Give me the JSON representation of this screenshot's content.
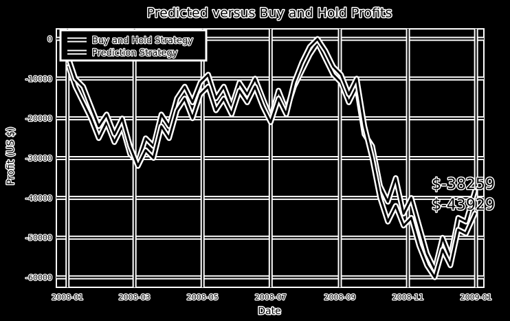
{
  "chart_data": {
    "type": "line",
    "title": "Predicted versus Buy and Hold Profits",
    "xlabel": "Date",
    "ylabel": "Profit (US $)",
    "xlim": [
      "2007-12-22",
      "2009-01-08"
    ],
    "ylim": [
      -62500,
      2500
    ],
    "x_ticks": [
      "2008-01-01",
      "2008-03-01",
      "2008-05-01",
      "2008-07-01",
      "2008-09-01",
      "2008-11-01",
      "2009-01-01"
    ],
    "x_tick_labels": [
      "2008-01",
      "2008-03",
      "2008-05",
      "2008-07",
      "2008-09",
      "2008-11",
      "2009-01"
    ],
    "y_ticks": [
      0,
      -10000,
      -20000,
      -30000,
      -40000,
      -50000,
      -60000
    ],
    "y_tick_labels": [
      "0",
      "-10000",
      "-20000",
      "-30000",
      "-40000",
      "-50000",
      "-60000"
    ],
    "grid": true,
    "legend": {
      "placement": "top-left",
      "entries": [
        "Buy and Hold Strategy",
        "Prediction Strategy"
      ]
    },
    "annotations": [
      "$-38259",
      "$-43929"
    ],
    "series": [
      {
        "name": "Buy and Hold Strategy",
        "x": [
          "2008-01-02",
          "2008-01-08",
          "2008-01-15",
          "2008-01-22",
          "2008-01-29",
          "2008-02-05",
          "2008-02-12",
          "2008-02-19",
          "2008-02-26",
          "2008-03-04",
          "2008-03-11",
          "2008-03-18",
          "2008-03-25",
          "2008-04-01",
          "2008-04-08",
          "2008-04-15",
          "2008-04-22",
          "2008-04-29",
          "2008-05-06",
          "2008-05-13",
          "2008-05-20",
          "2008-05-27",
          "2008-06-03",
          "2008-06-10",
          "2008-06-17",
          "2008-06-24",
          "2008-07-01",
          "2008-07-08",
          "2008-07-15",
          "2008-07-22",
          "2008-07-29",
          "2008-08-05",
          "2008-08-12",
          "2008-08-19",
          "2008-08-26",
          "2008-09-02",
          "2008-09-09",
          "2008-09-16",
          "2008-09-23",
          "2008-09-30",
          "2008-10-07",
          "2008-10-14",
          "2008-10-21",
          "2008-10-28",
          "2008-11-04",
          "2008-11-11",
          "2008-11-18",
          "2008-11-25",
          "2008-12-02",
          "2008-12-09",
          "2008-12-16",
          "2008-12-23",
          "2008-12-31"
        ],
        "values": [
          -7000,
          -12000,
          -16000,
          -20000,
          -25000,
          -21000,
          -26000,
          -22000,
          -29000,
          -31000,
          -25000,
          -27000,
          -19000,
          -22000,
          -15000,
          -12000,
          -16000,
          -11000,
          -9000,
          -15000,
          -12000,
          -17000,
          -11000,
          -14000,
          -10000,
          -15000,
          -20000,
          -13000,
          -18000,
          -12000,
          -8000,
          -4000,
          -1000,
          -5000,
          -9000,
          -11000,
          -16000,
          -12000,
          -24000,
          -27000,
          -37000,
          -41000,
          -35000,
          -44000,
          -40000,
          -47000,
          -54000,
          -58000,
          -50000,
          -55000,
          -45000,
          -46000,
          -38259
        ]
      },
      {
        "name": "Prediction Strategy",
        "x": [
          "2008-01-02",
          "2008-01-08",
          "2008-01-15",
          "2008-01-22",
          "2008-01-29",
          "2008-02-05",
          "2008-02-12",
          "2008-02-19",
          "2008-02-26",
          "2008-03-04",
          "2008-03-11",
          "2008-03-18",
          "2008-03-25",
          "2008-04-01",
          "2008-04-08",
          "2008-04-15",
          "2008-04-22",
          "2008-04-29",
          "2008-05-06",
          "2008-05-13",
          "2008-05-20",
          "2008-05-27",
          "2008-06-03",
          "2008-06-10",
          "2008-06-17",
          "2008-06-24",
          "2008-07-01",
          "2008-07-08",
          "2008-07-15",
          "2008-07-22",
          "2008-07-29",
          "2008-08-05",
          "2008-08-12",
          "2008-08-19",
          "2008-08-26",
          "2008-09-02",
          "2008-09-09",
          "2008-09-16",
          "2008-09-23",
          "2008-09-30",
          "2008-10-07",
          "2008-10-14",
          "2008-10-21",
          "2008-10-28",
          "2008-11-04",
          "2008-11-11",
          "2008-11-18",
          "2008-11-25",
          "2008-12-02",
          "2008-12-09",
          "2008-12-16",
          "2008-12-23",
          "2008-12-31"
        ],
        "values": [
          -5000,
          -10000,
          -12000,
          -17000,
          -22000,
          -19000,
          -24000,
          -20000,
          -27000,
          -32000,
          -28000,
          -30000,
          -22000,
          -25000,
          -18000,
          -15000,
          -20000,
          -14000,
          -12000,
          -18000,
          -15000,
          -19000,
          -13000,
          -16000,
          -12000,
          -17000,
          -21000,
          -15000,
          -19000,
          -11000,
          -6000,
          -2000,
          0,
          -3000,
          -7000,
          -9000,
          -14000,
          -10000,
          -22000,
          -30000,
          -40000,
          -46000,
          -42000,
          -47000,
          -45000,
          -52000,
          -57000,
          -60000,
          -53000,
          -57000,
          -48000,
          -49000,
          -43929
        ]
      }
    ]
  }
}
